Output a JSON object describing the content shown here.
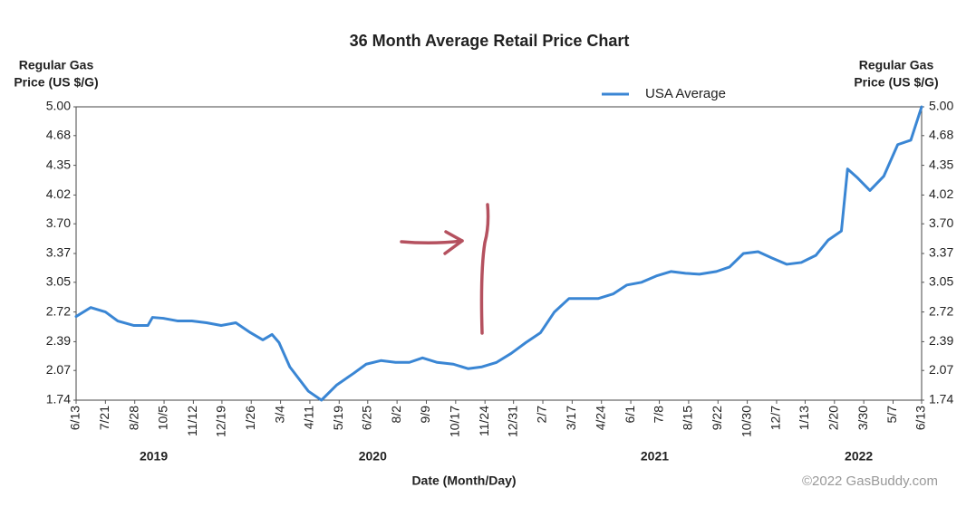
{
  "chart_data": {
    "type": "line",
    "title": "36 Month Average Retail Price Chart",
    "ylabel": [
      "Regular Gas",
      "Price (US $/G)"
    ],
    "y2label": [
      "Regular Gas",
      "Price (US $/G)"
    ],
    "xlabel": "Date (Month/Day)",
    "credit": "©2022 GasBuddy.com",
    "legend": "top",
    "grid": false,
    "years": [
      "2019",
      "2020",
      "2021",
      "2022"
    ],
    "xlim": [
      "2019-06-13",
      "2022-06-13"
    ],
    "xticks": [
      {
        "value": "2019-06-13",
        "label": "6/13"
      },
      {
        "value": "2019-07-21",
        "label": "7/21"
      },
      {
        "value": "2019-08-28",
        "label": "8/28"
      },
      {
        "value": "2019-10-05",
        "label": "10/5"
      },
      {
        "value": "2019-11-12",
        "label": "11/12"
      },
      {
        "value": "2019-12-19",
        "label": "12/19"
      },
      {
        "value": "2020-01-26",
        "label": "1/26"
      },
      {
        "value": "2020-03-04",
        "label": "3/4"
      },
      {
        "value": "2020-04-11",
        "label": "4/11"
      },
      {
        "value": "2020-05-19",
        "label": "5/19"
      },
      {
        "value": "2020-06-25",
        "label": "6/25"
      },
      {
        "value": "2020-08-02",
        "label": "8/2"
      },
      {
        "value": "2020-09-09",
        "label": "9/9"
      },
      {
        "value": "2020-10-17",
        "label": "10/17"
      },
      {
        "value": "2020-11-24",
        "label": "11/24"
      },
      {
        "value": "2020-12-31",
        "label": "12/31"
      },
      {
        "value": "2021-02-07",
        "label": "2/7"
      },
      {
        "value": "2021-03-17",
        "label": "3/17"
      },
      {
        "value": "2021-04-24",
        "label": "4/24"
      },
      {
        "value": "2021-06-01",
        "label": "6/1"
      },
      {
        "value": "2021-07-08",
        "label": "7/8"
      },
      {
        "value": "2021-08-15",
        "label": "8/15"
      },
      {
        "value": "2021-09-22",
        "label": "9/22"
      },
      {
        "value": "2021-10-30",
        "label": "10/30"
      },
      {
        "value": "2021-12-07",
        "label": "12/7"
      },
      {
        "value": "2022-01-13",
        "label": "1/13"
      },
      {
        "value": "2022-02-20",
        "label": "2/20"
      },
      {
        "value": "2022-03-30",
        "label": "3/30"
      },
      {
        "value": "2022-05-07",
        "label": "5/7"
      },
      {
        "value": "2022-06-13",
        "label": "6/13"
      }
    ],
    "ylim": [
      1.74,
      5
    ],
    "yticks": [
      1.74,
      2.07,
      2.39,
      2.72,
      3.05,
      3.37,
      {
        "value": 3.7,
        "label": "3.70"
      },
      4.02,
      4.35,
      4.68,
      {
        "value": 5,
        "label": "5.00"
      }
    ],
    "x": [
      "2019-06-13",
      "2019-07-02",
      "2019-07-21",
      "2019-08-06",
      "2019-08-27",
      "2019-09-14",
      "2019-09-20",
      "2019-10-04",
      "2019-10-23",
      "2019-11-10",
      "2019-11-29",
      "2019-12-18",
      "2020-01-06",
      "2020-01-25",
      "2020-02-10",
      "2020-02-22",
      "2020-03-02",
      "2020-03-16",
      "2020-04-09",
      "2020-04-26",
      "2020-05-16",
      "2020-06-07",
      "2020-06-23",
      "2020-07-12",
      "2020-07-31",
      "2020-08-18",
      "2020-09-04",
      "2020-09-23",
      "2020-10-14",
      "2020-11-02",
      "2020-11-20",
      "2020-12-09",
      "2020-12-28",
      "2021-01-16",
      "2021-02-04",
      "2021-02-22",
      "2021-03-13",
      "2021-04-01",
      "2021-04-20",
      "2021-05-09",
      "2021-05-27",
      "2021-06-15",
      "2021-07-04",
      "2021-07-23",
      "2021-08-11",
      "2021-08-29",
      "2021-09-20",
      "2021-10-07",
      "2021-10-25",
      "2021-11-13",
      "2021-12-01",
      "2021-12-20",
      "2022-01-08",
      "2022-01-27",
      "2022-02-12",
      "2022-03-01",
      "2022-03-09",
      "2022-03-22",
      "2022-04-07",
      "2022-04-25",
      "2022-05-13",
      "2022-05-30",
      "2022-06-13"
    ],
    "series": [
      {
        "name": "USA Average",
        "color": "#3a86d4",
        "values": [
          2.67,
          2.77,
          2.72,
          2.62,
          2.57,
          2.57,
          2.66,
          2.65,
          2.62,
          2.62,
          2.6,
          2.57,
          2.6,
          2.49,
          2.41,
          2.47,
          2.38,
          2.11,
          1.84,
          1.74,
          1.91,
          2.04,
          2.14,
          2.18,
          2.16,
          2.16,
          2.21,
          2.16,
          2.14,
          2.09,
          2.11,
          2.16,
          2.26,
          2.38,
          2.49,
          2.72,
          2.87,
          2.87,
          2.87,
          2.92,
          3.02,
          3.05,
          3.12,
          3.17,
          3.15,
          3.14,
          3.17,
          3.22,
          3.37,
          3.39,
          3.32,
          3.25,
          3.27,
          3.35,
          3.52,
          3.62,
          4.31,
          4.21,
          4.07,
          4.23,
          4.58,
          4.63,
          5.0
        ]
      }
    ]
  }
}
